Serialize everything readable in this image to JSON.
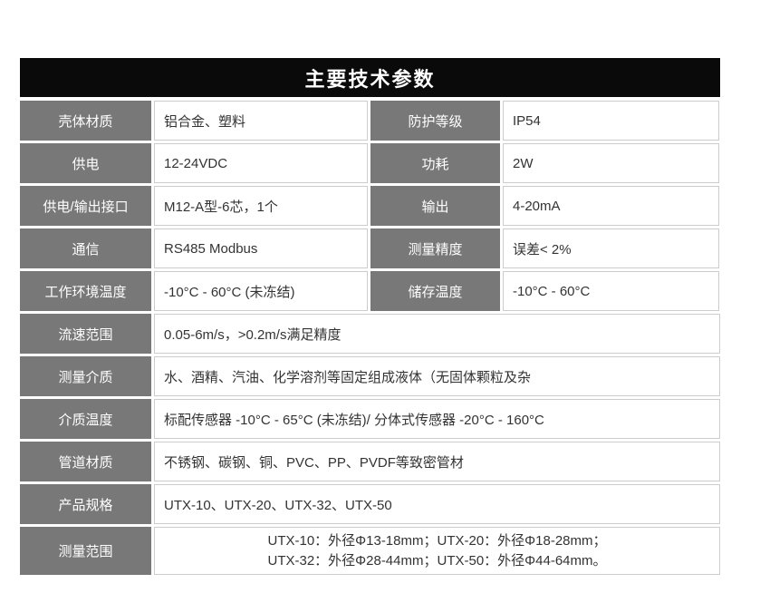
{
  "title": "主要技术参数",
  "colors": {
    "banner_bg": "#0a0a0a",
    "banner_text": "#ffffff",
    "label_bg": "#787878",
    "label_text": "#ffffff",
    "value_text": "#333333",
    "cell_border": "#cccccc",
    "page_bg": "#ffffff"
  },
  "table": {
    "paired_rows": [
      {
        "left_label": "壳体材质",
        "left_value": "铝合金、塑料",
        "right_label": "防护等级",
        "right_value": "IP54"
      },
      {
        "left_label": "供电",
        "left_value": "12-24VDC",
        "right_label": "功耗",
        "right_value": "2W"
      },
      {
        "left_label": "供电/输出接口",
        "left_value": "M12-A型-6芯，1个",
        "right_label": "输出",
        "right_value": "4-20mA"
      },
      {
        "left_label": "通信",
        "left_value": "RS485 Modbus",
        "right_label": "测量精度",
        "right_value": "误差< 2%"
      },
      {
        "left_label": "工作环境温度",
        "left_value": "-10°C - 60°C (未冻结)",
        "right_label": "储存温度",
        "right_value": "-10°C - 60°C"
      }
    ],
    "full_rows": [
      {
        "label": "流速范围",
        "value": "0.05-6m/s，>0.2m/s满足精度"
      },
      {
        "label": "测量介质",
        "value": "水、酒精、汽油、化学溶剂等固定组成液体（无固体颗粒及杂"
      },
      {
        "label": "介质温度",
        "value": "标配传感器 -10°C - 65°C (未冻结)/ 分体式传感器 -20°C - 160°C"
      },
      {
        "label": "管道材质",
        "value": "不锈钢、碳钢、铜、PVC、PP、PVDF等致密管材"
      },
      {
        "label": "产品规格",
        "value": "UTX-10、UTX-20、UTX-32、UTX-50"
      },
      {
        "label": "测量范围",
        "value_line1": "UTX-10：外径Φ13-18mm；UTX-20：外径Φ18-28mm；",
        "value_line2": "UTX-32：外径Φ28-44mm；UTX-50：外径Φ44-64mm。"
      }
    ]
  }
}
